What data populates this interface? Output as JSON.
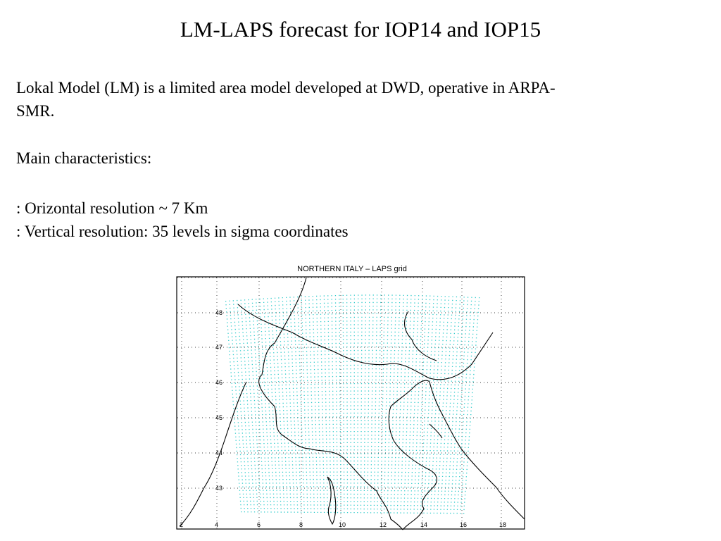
{
  "slide": {
    "title": "LM-LAPS forecast for IOP14 and IOP15",
    "intro_line1": "Lokal Model (LM) is a limited area model developed at DWD, operative in ARPA-",
    "intro_line2": "SMR.",
    "characteristics_heading": "Main characteristics:",
    "bullets": [
      ": Orizontal resolution ~ 7 Km",
      ": Vertical resolution: 35 levels in sigma coordinates"
    ]
  },
  "figure": {
    "title": "NORTHERN ITALY  –  LAPS grid",
    "lat_labels": [
      "48",
      "47",
      "46",
      "45",
      "44",
      "43"
    ],
    "lon_labels": [
      "2",
      "4",
      "6",
      "8",
      "10",
      "12",
      "14",
      "16",
      "18"
    ],
    "grid_color": "#33cccc",
    "coast_color": "#000000"
  }
}
